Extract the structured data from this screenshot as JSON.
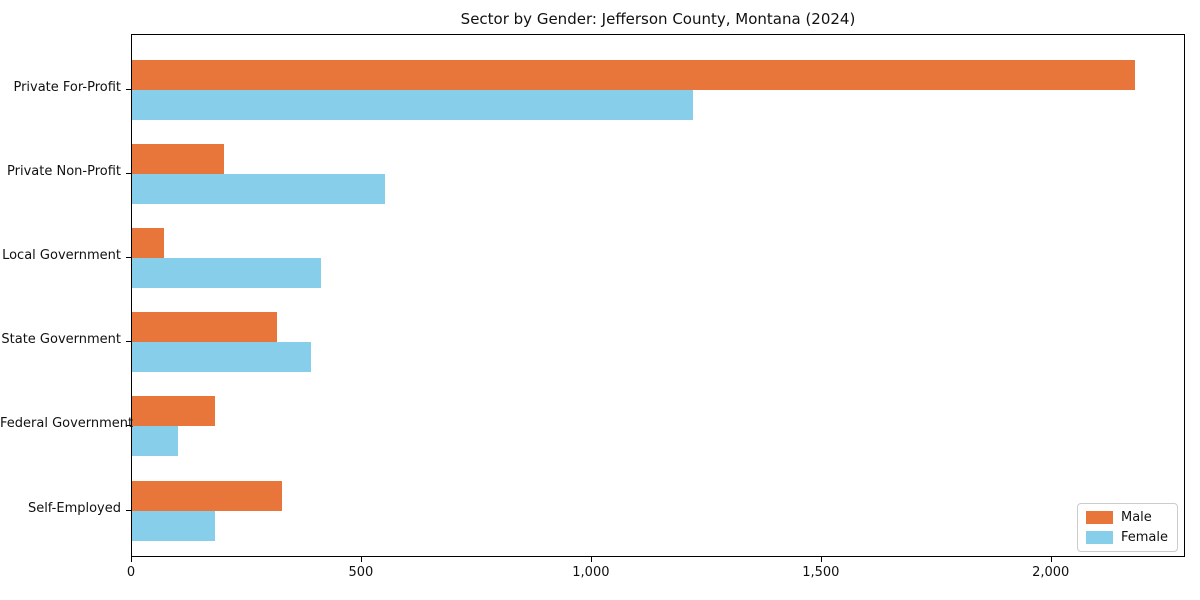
{
  "chart_data": {
    "type": "bar",
    "orientation": "horizontal",
    "title": "Sector by Gender: Jefferson County, Montana (2024)",
    "categories": [
      "Private For-Profit",
      "Private Non-Profit",
      "Local Government",
      "State Government",
      "Federal Government",
      "Self-Employed"
    ],
    "series": [
      {
        "name": "Male",
        "color": "#e8763b",
        "values": [
          2180,
          200,
          70,
          315,
          180,
          325
        ]
      },
      {
        "name": "Female",
        "color": "#87ceeb",
        "values": [
          1220,
          550,
          410,
          390,
          100,
          180
        ]
      }
    ],
    "xlabel": "",
    "ylabel": "",
    "xlim": [
      0,
      2292
    ],
    "xticks": [
      0,
      500,
      1000,
      1500,
      2000
    ],
    "xtick_labels": [
      "0",
      "500",
      "1,000",
      "1,500",
      "2,000"
    ],
    "legend_position": "lower right",
    "grid": false,
    "background": "#ffffff",
    "text_color": "#111111"
  }
}
